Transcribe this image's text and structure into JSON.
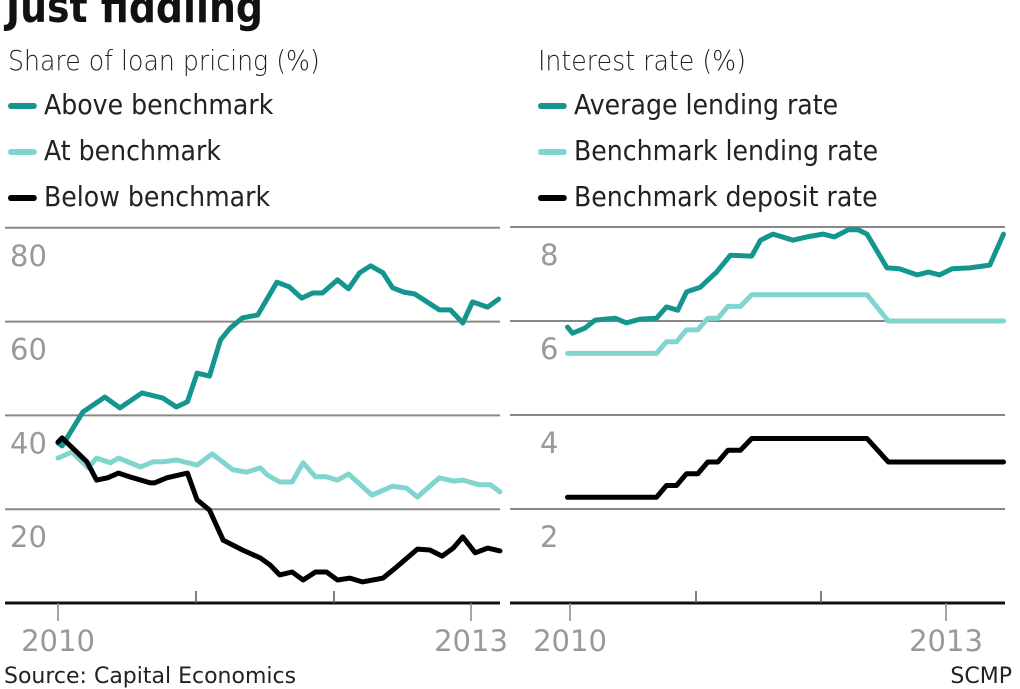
{
  "title": "Just fiddling",
  "source": "Source: Capital Economics",
  "credit": "SCMP",
  "colors": {
    "above": "#14968f",
    "at": "#80d5cf",
    "below": "#000000",
    "grid": "#888888",
    "tick_label": "#999999"
  },
  "chart_data": [
    {
      "type": "line",
      "title": "Share of loan pricing (%)",
      "ylim": [
        0,
        80
      ],
      "yticks": [
        "20",
        "40",
        "60",
        "80"
      ],
      "xlim": [
        2010,
        2013.2
      ],
      "xticks": [
        "2010",
        "2013"
      ],
      "grid": true,
      "legend": "top-left",
      "series": [
        {
          "name": "Above benchmark",
          "color": "#14968f",
          "points": [
            [
              2010.0,
              34.1
            ],
            [
              2010.03,
              33.5
            ],
            [
              2010.18,
              40.7
            ],
            [
              2010.34,
              43.9
            ],
            [
              2010.45,
              41.6
            ],
            [
              2010.61,
              44.8
            ],
            [
              2010.76,
              43.7
            ],
            [
              2010.86,
              41.8
            ],
            [
              2010.94,
              42.9
            ],
            [
              2011.01,
              49.0
            ],
            [
              2011.1,
              48.4
            ],
            [
              2011.18,
              56.1
            ],
            [
              2011.25,
              58.6
            ],
            [
              2011.34,
              60.8
            ],
            [
              2011.45,
              61.4
            ],
            [
              2011.59,
              68.4
            ],
            [
              2011.68,
              67.4
            ],
            [
              2011.77,
              65.0
            ],
            [
              2011.85,
              66.1
            ],
            [
              2011.92,
              66.1
            ],
            [
              2012.03,
              68.9
            ],
            [
              2012.11,
              67.0
            ],
            [
              2012.19,
              70.4
            ],
            [
              2012.27,
              71.9
            ],
            [
              2012.36,
              70.4
            ],
            [
              2012.43,
              67.2
            ],
            [
              2012.51,
              66.3
            ],
            [
              2012.59,
              65.9
            ],
            [
              2012.68,
              64.2
            ],
            [
              2012.77,
              62.5
            ],
            [
              2012.85,
              62.5
            ],
            [
              2012.94,
              59.7
            ],
            [
              2013.01,
              64.2
            ],
            [
              2013.12,
              63.1
            ],
            [
              2013.2,
              64.8
            ]
          ]
        },
        {
          "name": "At benchmark",
          "color": "#80d5cf",
          "points": [
            [
              2010.0,
              30.9
            ],
            [
              2010.1,
              32.2
            ],
            [
              2010.22,
              28.8
            ],
            [
              2010.28,
              30.9
            ],
            [
              2010.38,
              29.9
            ],
            [
              2010.44,
              30.9
            ],
            [
              2010.6,
              29.0
            ],
            [
              2010.69,
              30.1
            ],
            [
              2010.76,
              30.1
            ],
            [
              2010.86,
              30.5
            ],
            [
              2011.01,
              29.4
            ],
            [
              2011.12,
              31.8
            ],
            [
              2011.27,
              28.4
            ],
            [
              2011.37,
              27.9
            ],
            [
              2011.47,
              28.8
            ],
            [
              2011.52,
              27.3
            ],
            [
              2011.61,
              25.8
            ],
            [
              2011.7,
              25.8
            ],
            [
              2011.78,
              29.9
            ],
            [
              2011.87,
              26.9
            ],
            [
              2011.95,
              26.9
            ],
            [
              2012.03,
              26.2
            ],
            [
              2012.11,
              27.5
            ],
            [
              2012.28,
              23.0
            ],
            [
              2012.43,
              24.9
            ],
            [
              2012.53,
              24.5
            ],
            [
              2012.61,
              22.6
            ],
            [
              2012.77,
              26.7
            ],
            [
              2012.87,
              26.0
            ],
            [
              2012.94,
              26.2
            ],
            [
              2013.06,
              25.2
            ],
            [
              2013.14,
              25.2
            ],
            [
              2013.21,
              23.7
            ]
          ]
        },
        {
          "name": "Below benchmark",
          "color": "#000000",
          "points": [
            [
              2010.0,
              34.3
            ],
            [
              2010.03,
              35.2
            ],
            [
              2010.21,
              30.1
            ],
            [
              2010.28,
              26.2
            ],
            [
              2010.36,
              26.7
            ],
            [
              2010.44,
              27.7
            ],
            [
              2010.52,
              26.9
            ],
            [
              2010.67,
              25.6
            ],
            [
              2010.7,
              25.6
            ],
            [
              2010.79,
              26.7
            ],
            [
              2010.94,
              27.7
            ],
            [
              2011.01,
              22.0
            ],
            [
              2011.1,
              19.8
            ],
            [
              2011.2,
              13.4
            ],
            [
              2011.34,
              11.3
            ],
            [
              2011.47,
              9.6
            ],
            [
              2011.54,
              8.1
            ],
            [
              2011.61,
              6.0
            ],
            [
              2011.7,
              6.6
            ],
            [
              2011.78,
              4.9
            ],
            [
              2011.87,
              6.6
            ],
            [
              2011.95,
              6.6
            ],
            [
              2012.03,
              4.9
            ],
            [
              2012.12,
              5.3
            ],
            [
              2012.21,
              4.5
            ],
            [
              2012.36,
              5.3
            ],
            [
              2012.46,
              7.7
            ],
            [
              2012.61,
              11.5
            ],
            [
              2012.7,
              11.3
            ],
            [
              2012.79,
              10.0
            ],
            [
              2012.87,
              11.7
            ],
            [
              2012.94,
              14.1
            ],
            [
              2013.03,
              10.7
            ],
            [
              2013.12,
              11.7
            ],
            [
              2013.21,
              11.1
            ]
          ]
        }
      ]
    },
    {
      "type": "line",
      "title": "Interest rate (%)",
      "ylim": [
        0,
        8
      ],
      "yticks": [
        "2",
        "4",
        "6",
        "8"
      ],
      "xlim": [
        2010,
        2013.46
      ],
      "xticks": [
        "2010",
        "2013"
      ],
      "grid": true,
      "legend": "top-left",
      "series": [
        {
          "name": "Average lending rate",
          "color": "#14968f",
          "points": [
            [
              2009.98,
              5.87
            ],
            [
              2010.02,
              5.74
            ],
            [
              2010.12,
              5.85
            ],
            [
              2010.2,
              6.02
            ],
            [
              2010.36,
              6.06
            ],
            [
              2010.45,
              5.96
            ],
            [
              2010.56,
              6.04
            ],
            [
              2010.69,
              6.06
            ],
            [
              2010.77,
              6.3
            ],
            [
              2010.86,
              6.23
            ],
            [
              2010.93,
              6.62
            ],
            [
              2011.04,
              6.72
            ],
            [
              2011.17,
              7.04
            ],
            [
              2011.28,
              7.4
            ],
            [
              2011.45,
              7.38
            ],
            [
              2011.52,
              7.72
            ],
            [
              2011.62,
              7.85
            ],
            [
              2011.78,
              7.72
            ],
            [
              2011.89,
              7.79
            ],
            [
              2012.02,
              7.85
            ],
            [
              2012.11,
              7.79
            ],
            [
              2012.22,
              7.94
            ],
            [
              2012.3,
              7.94
            ],
            [
              2012.37,
              7.85
            ],
            [
              2012.53,
              7.13
            ],
            [
              2012.63,
              7.11
            ],
            [
              2012.77,
              6.98
            ],
            [
              2012.86,
              7.04
            ],
            [
              2012.95,
              6.98
            ],
            [
              2013.05,
              7.11
            ],
            [
              2013.19,
              7.13
            ],
            [
              2013.35,
              7.19
            ],
            [
              2013.46,
              7.85
            ]
          ]
        },
        {
          "name": "Benchmark lending rate",
          "color": "#80d5cf",
          "points": [
            [
              2009.98,
              5.31
            ],
            [
              2010.69,
              5.31
            ],
            [
              2010.77,
              5.56
            ],
            [
              2010.85,
              5.56
            ],
            [
              2010.93,
              5.81
            ],
            [
              2011.02,
              5.81
            ],
            [
              2011.1,
              6.06
            ],
            [
              2011.18,
              6.06
            ],
            [
              2011.26,
              6.31
            ],
            [
              2011.36,
              6.31
            ],
            [
              2011.45,
              6.56
            ],
            [
              2012.37,
              6.56
            ],
            [
              2012.54,
              6.0
            ],
            [
              2013.46,
              6.0
            ]
          ]
        },
        {
          "name": "Benchmark deposit rate",
          "color": "#000000",
          "points": [
            [
              2009.98,
              2.25
            ],
            [
              2010.69,
              2.25
            ],
            [
              2010.77,
              2.5
            ],
            [
              2010.85,
              2.5
            ],
            [
              2010.93,
              2.75
            ],
            [
              2011.02,
              2.75
            ],
            [
              2011.1,
              3.0
            ],
            [
              2011.18,
              3.0
            ],
            [
              2011.26,
              3.25
            ],
            [
              2011.36,
              3.25
            ],
            [
              2011.45,
              3.5
            ],
            [
              2012.37,
              3.5
            ],
            [
              2012.54,
              3.0
            ],
            [
              2013.46,
              3.0
            ]
          ]
        }
      ]
    }
  ]
}
